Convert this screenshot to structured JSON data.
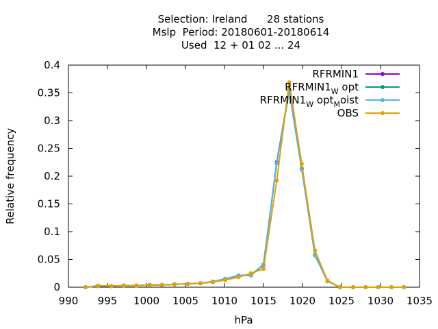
{
  "chart_data": {
    "type": "line",
    "title_lines": [
      "Selection: Ireland      28 stations",
      "Mslp  Period: 20180601-20180614",
      "Used  12 + 01 02 ... 24"
    ],
    "xlabel": "hPa",
    "ylabel": "Relative frequency",
    "xlim": [
      990,
      1035
    ],
    "ylim": [
      0,
      0.4
    ],
    "xticks": [
      990,
      995,
      1000,
      1005,
      1010,
      1015,
      1020,
      1025,
      1030,
      1035
    ],
    "yticks": [
      0,
      0.05,
      0.1,
      0.15,
      0.2,
      0.25,
      0.3,
      0.35,
      0.4
    ],
    "ytick_labels": [
      "0",
      "0.05",
      "0.1",
      "0.15",
      "0.2",
      "0.25",
      "0.3",
      "0.35",
      "0.4"
    ],
    "grid": false,
    "legend_position": "top-right",
    "x": [
      992.2,
      993.8,
      995.5,
      997.1,
      998.7,
      1000.4,
      1002.0,
      1003.6,
      1005.3,
      1006.9,
      1008.5,
      1010.1,
      1011.8,
      1013.4,
      1015.0,
      1016.7,
      1018.3,
      1019.9,
      1021.6,
      1023.2,
      1024.8,
      1026.5,
      1028.1,
      1029.7,
      1031.4,
      1033.0
    ],
    "series": [
      {
        "name": "RFRMIN1",
        "legend": {
          "main": "RFRMIN1",
          "parts": []
        },
        "color": "#9400d3",
        "values": [
          0.0,
          0.002,
          0.002,
          0.003,
          0.003,
          0.004,
          0.004,
          0.005,
          0.006,
          0.007,
          0.01,
          0.015,
          0.021,
          0.022,
          0.04,
          0.225,
          0.355,
          0.213,
          0.058,
          0.011,
          0.0,
          0.0,
          0.0,
          0.0,
          0.0,
          0.0
        ]
      },
      {
        "name": "RFRMIN1_W opt",
        "legend": {
          "main": "RFRMIN1",
          "parts": [
            {
              "sub": "W",
              "text": " opt"
            }
          ]
        },
        "color": "#009e73",
        "values": [
          0.0,
          0.002,
          0.002,
          0.003,
          0.003,
          0.004,
          0.004,
          0.005,
          0.006,
          0.007,
          0.01,
          0.015,
          0.021,
          0.022,
          0.041,
          0.224,
          0.354,
          0.214,
          0.058,
          0.011,
          0.0,
          0.0,
          0.0,
          0.0,
          0.0,
          0.0
        ]
      },
      {
        "name": "RFRMIN1_W opt_M oist",
        "legend": {
          "main": "RFRMIN1",
          "parts": [
            {
              "sub": "W",
              "text": " opt"
            },
            {
              "sub": "M",
              "text": "oist"
            }
          ]
        },
        "color": "#56b4e9",
        "values": [
          0.0,
          0.002,
          0.002,
          0.003,
          0.003,
          0.004,
          0.004,
          0.005,
          0.006,
          0.007,
          0.01,
          0.015,
          0.021,
          0.021,
          0.041,
          0.223,
          0.352,
          0.212,
          0.057,
          0.011,
          0.0,
          0.0,
          0.0,
          0.0,
          0.0,
          0.0
        ]
      },
      {
        "name": "OBS",
        "legend": {
          "main": "OBS",
          "parts": []
        },
        "color": "#e69f00",
        "values": [
          0.0,
          0.003,
          0.002,
          0.003,
          0.003,
          0.004,
          0.004,
          0.005,
          0.006,
          0.007,
          0.009,
          0.013,
          0.018,
          0.025,
          0.033,
          0.192,
          0.369,
          0.222,
          0.066,
          0.012,
          0.0,
          0.0,
          0.0,
          0.0,
          0.0,
          0.0
        ]
      }
    ]
  }
}
